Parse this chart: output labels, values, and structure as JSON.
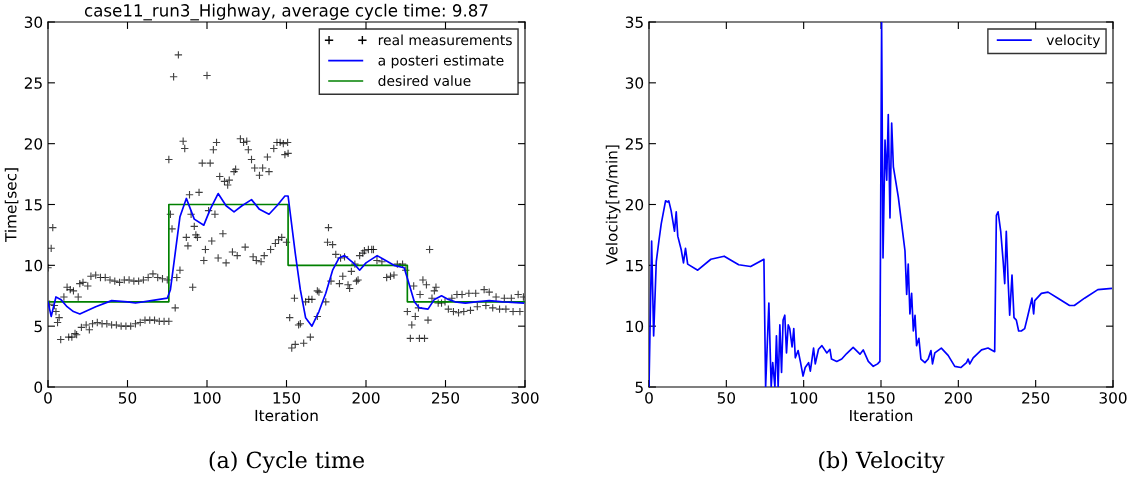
{
  "chart_data": [
    {
      "type": "line",
      "title": "case11_run3_Highway, average cycle time: 9.87",
      "xlabel": "Iteration",
      "ylabel": "Time[sec]",
      "xlim": [
        0,
        300
      ],
      "xticks": [
        0,
        50,
        100,
        150,
        200,
        250,
        300
      ],
      "ylim": [
        0,
        30
      ],
      "yticks": [
        0,
        5,
        10,
        15,
        20,
        25,
        30
      ],
      "grid": false,
      "legend": "top right",
      "annotations": [
        "(a) Cycle time"
      ],
      "series": [
        {
          "type": "scatter",
          "name": "real measurements",
          "color": "#000000",
          "marker": "cross",
          "x": [
            0,
            1,
            2,
            3,
            4,
            5,
            6,
            7,
            8,
            10,
            12,
            13,
            14,
            15,
            16,
            17,
            18,
            19,
            20,
            21,
            22,
            24,
            25,
            26,
            27,
            28,
            30,
            31,
            33,
            34,
            36,
            37,
            39,
            40,
            42,
            43,
            45,
            46,
            48,
            49,
            51,
            52,
            54,
            55,
            57,
            58,
            60,
            61,
            63,
            64,
            66,
            67,
            69,
            70,
            72,
            73,
            75,
            76,
            76,
            77,
            78,
            79,
            80,
            81,
            82,
            83,
            85,
            86,
            87,
            88,
            89,
            90,
            91,
            92,
            93,
            94,
            95,
            97,
            98,
            99,
            100,
            101,
            102,
            103,
            104,
            105,
            106,
            107,
            108,
            110,
            111,
            112,
            113,
            114,
            116,
            117,
            118,
            119,
            121,
            123,
            124,
            125,
            126,
            128,
            129,
            130,
            131,
            133,
            134,
            135,
            136,
            138,
            139,
            140,
            142,
            143,
            144,
            145,
            146,
            147,
            148,
            149,
            150.7,
            151,
            150,
            155,
            152,
            153.3,
            155.5,
            157.6,
            158.7,
            160.8,
            162,
            164,
            165,
            166,
            169.4,
            170.4,
            169.4,
            174.7,
            176.4,
            175.8,
            179,
            181,
            178,
            183.3,
            184,
            186.5,
            185.4,
            188.7,
            189.7,
            190.8,
            193,
            194,
            195,
            196,
            198,
            199,
            201.5,
            203.6,
            204.7,
            206.9,
            210,
            213,
            215.4,
            217.6,
            219.7,
            223,
            225,
            226,
            227.9,
            228.8,
            230,
            231,
            233,
            234,
            233.6,
            235.8,
            236.8,
            238,
            239,
            240,
            241.5,
            243,
            244,
            245.4,
            247.5,
            249.7,
            251.8,
            254,
            255,
            257.2,
            258.2,
            260.4,
            261.5,
            264.7,
            265.7,
            269,
            270,
            274.3,
            275.4,
            277.5,
            279.7,
            281.8,
            284,
            287,
            288,
            291.4,
            292.5,
            295.7,
            296.8,
            299
          ],
          "values": [
            9.8,
            6.8,
            11.4,
            13.1,
            6.7,
            6.2,
            5.3,
            5.7,
            3.9,
            7.4,
            8.2,
            4.1,
            8.0,
            4.1,
            7.9,
            4.4,
            4.3,
            7.4,
            8.5,
            4.9,
            8.6,
            5.1,
            8.3,
            4.7,
            9.1,
            5.2,
            9.2,
            5.3,
            9.0,
            5.2,
            9.0,
            5.2,
            8.8,
            5.1,
            8.7,
            5.1,
            8.6,
            5.0,
            8.8,
            5.0,
            8.8,
            5.0,
            8.7,
            5.2,
            8.7,
            5.3,
            8.8,
            5.5,
            9.0,
            5.5,
            9.3,
            5.5,
            9.0,
            5.4,
            8.9,
            5.4,
            8.8,
            5.4,
            18.7,
            14.2,
            13.0,
            25.5,
            6.5,
            9.0,
            27.3,
            9.6,
            20.2,
            19.6,
            12.3,
            11.6,
            15.8,
            14.2,
            8.2,
            13.2,
            12.5,
            12.3,
            16.0,
            18.4,
            10.4,
            11.3,
            25.6,
            14.5,
            18.4,
            12.0,
            19.5,
            14.2,
            20.1,
            10.6,
            17.3,
            12.6,
            16.9,
            10.2,
            16.6,
            17.0,
            11.1,
            17.7,
            17.9,
            10.8,
            20.4,
            20.1,
            11.5,
            20.2,
            19.5,
            18.7,
            10.7,
            18.0,
            10.4,
            17.4,
            10.3,
            18.0,
            10.8,
            18.9,
            17.7,
            11.3,
            19.6,
            11.8,
            20.1,
            12.1,
            20.1,
            12.3,
            20.0,
            19.1,
            20.1,
            19.2,
            11.9,
            7.3,
            5.7,
            3.2,
            3.5,
            5.1,
            5.2,
            3.6,
            7.0,
            7.2,
            4.1,
            7.2,
            7.9,
            7.8,
            5.8,
            7.0,
            13.1,
            11.9,
            11.7,
            10.9,
            8.7,
            8.5,
            10.6,
            10.7,
            9.1,
            8.4,
            8.1,
            9.5,
            10.1,
            8.7,
            8.8,
            10.8,
            11.0,
            11.2,
            11.3,
            11.3,
            11.3,
            10.4,
            10.3,
            9.0,
            9.1,
            9.2,
            10.1,
            10.1,
            9.6,
            6.2,
            4.0,
            5.1,
            8.3,
            5.8,
            6.5,
            7.6,
            4.0,
            8.8,
            4.0,
            8.4,
            5.5,
            11.3,
            7.3,
            7.9,
            8.2,
            6.9,
            6.9,
            7.0,
            6.4,
            7.3,
            6.2,
            7.6,
            6.1,
            7.6,
            6.2,
            7.7,
            6.3,
            7.7,
            6.6,
            8.0,
            6.7,
            7.8,
            6.5,
            7.4,
            6.4,
            7.3,
            6.4,
            7.3,
            6.2,
            7.6,
            6.2,
            7.4
          ]
        },
        {
          "type": "line",
          "name": "a posteri estimate",
          "color": "#0000ff",
          "x": [
            0,
            2,
            5,
            8,
            12,
            16,
            20,
            30,
            40,
            50,
            55,
            65,
            75,
            77,
            80,
            83,
            87,
            92,
            98,
            102,
            107,
            112,
            117,
            122,
            128,
            133,
            139,
            144,
            149,
            151,
            155.5,
            158.7,
            162,
            166,
            170.4,
            174.7,
            179,
            183,
            186.5,
            192,
            196,
            200,
            207,
            211,
            217.6,
            224,
            227,
            230.4,
            233.6,
            239,
            243,
            247.5,
            251.8,
            256,
            262.5,
            269,
            277.5,
            286,
            299
          ],
          "values": [
            7.0,
            5.8,
            7.4,
            7.2,
            6.6,
            6.2,
            6.0,
            6.6,
            7.1,
            7.0,
            6.9,
            7.1,
            7.3,
            8.0,
            11.0,
            14.0,
            15.5,
            13.8,
            13.3,
            14.6,
            15.9,
            14.9,
            14.4,
            14.9,
            15.4,
            14.6,
            14.2,
            14.9,
            15.7,
            15.7,
            11.0,
            8.0,
            5.7,
            5.0,
            6.2,
            7.7,
            9.6,
            10.6,
            10.8,
            10.2,
            9.6,
            10.2,
            10.8,
            10.5,
            10.0,
            9.8,
            8.5,
            7.0,
            6.5,
            6.4,
            7.2,
            7.5,
            7.2,
            7.0,
            6.9,
            7.0,
            7.1,
            7.0,
            6.9
          ]
        },
        {
          "type": "step",
          "name": "desired value",
          "color": "#008000",
          "x": [
            0,
            76,
            151,
            226,
            300
          ],
          "values": [
            7,
            15,
            10,
            7,
            7
          ]
        }
      ]
    },
    {
      "type": "line",
      "xlabel": "Iteration",
      "ylabel": "Velocity[m/min]",
      "xlim": [
        0,
        300
      ],
      "xticks": [
        0,
        50,
        100,
        150,
        200,
        250,
        300
      ],
      "ylim": [
        5,
        35
      ],
      "yticks": [
        5,
        10,
        15,
        20,
        25,
        30,
        35
      ],
      "grid": false,
      "legend": "top right",
      "annotations": [
        "(b) Velocity"
      ],
      "series": [
        {
          "name": "velocity",
          "color": "#0000ff",
          "x": [
            0,
            1.7,
            3,
            4.7,
            6.4,
            7.9,
            10.7,
            12.2,
            12.8,
            14.3,
            16.5,
            17.6,
            18.6,
            20.8,
            22.3,
            23.6,
            25,
            31.5,
            40,
            48.6,
            58,
            65.7,
            74.3,
            75.4,
            77.5,
            79,
            80,
            81.4,
            82.4,
            83.5,
            84.6,
            85.7,
            86.7,
            87.8,
            88.9,
            90,
            91,
            92.5,
            93.6,
            94.6,
            96.4,
            98,
            99.6,
            101,
            103.2,
            104.3,
            106.4,
            107.5,
            109.6,
            111.8,
            115,
            117,
            118,
            121.4,
            124.6,
            127.8,
            132,
            136.4,
            138.5,
            141.8,
            145,
            147.8,
            149.3,
            150.4,
            151.3,
            152.6,
            153.7,
            154.7,
            155.8,
            156.9,
            158,
            161.2,
            165.5,
            166.6,
            167.6,
            168.7,
            169.8,
            170.9,
            172,
            173,
            174.5,
            175.8,
            178.4,
            180.5,
            182.3,
            183.3,
            184.8,
            189,
            193.4,
            197.7,
            201.6,
            205.3,
            206.3,
            207.4,
            209.6,
            215,
            219.2,
            223.5,
            224.6,
            225.7,
            227.4,
            229,
            230,
            231,
            232.2,
            233.2,
            234.7,
            236,
            237.5,
            239,
            240.7,
            242.9,
            245,
            247.6,
            248.7,
            249.4,
            253.7,
            258,
            264.4,
            271.9,
            275,
            281.6,
            290.2,
            298.8
          ],
          "values": [
            5,
            17,
            9.2,
            15.3,
            17,
            18.4,
            20.3,
            20.2,
            20.3,
            19.5,
            17.8,
            19.4,
            17.4,
            16.3,
            15.2,
            16.4,
            15.1,
            14.6,
            15.5,
            15.75,
            15.05,
            14.9,
            15.5,
            5,
            11.9,
            5,
            7,
            5,
            9.2,
            5,
            10.1,
            6.2,
            10.5,
            10.9,
            7.8,
            10.1,
            9.8,
            8.3,
            9.8,
            7.4,
            8.0,
            7.0,
            5.9,
            6.6,
            7.0,
            6.3,
            8.2,
            6.9,
            8.1,
            8.4,
            7.8,
            8.1,
            7.3,
            7.1,
            7.3,
            7.75,
            8.25,
            7.7,
            8.05,
            7.1,
            6.7,
            6.9,
            7.1,
            35,
            15.6,
            25.3,
            22,
            27.4,
            18.9,
            26.7,
            23.1,
            20.6,
            16.2,
            12.6,
            15.1,
            11,
            12.7,
            9.6,
            10.9,
            8.4,
            9,
            7.3,
            7.0,
            7.3,
            8,
            6.9,
            7.8,
            8.2,
            7.6,
            6.7,
            6.6,
            7.0,
            7.3,
            6.9,
            7.4,
            8.05,
            8.2,
            7.9,
            19.1,
            19.4,
            17.8,
            15.3,
            13.5,
            17.8,
            13.7,
            10.9,
            14.2,
            10.7,
            10.5,
            9.6,
            9.6,
            9.8,
            10.9,
            12.3,
            11.0,
            12.1,
            12.7,
            12.8,
            12.3,
            11.7,
            11.7,
            12.3,
            13,
            13.1
          ]
        }
      ]
    }
  ]
}
